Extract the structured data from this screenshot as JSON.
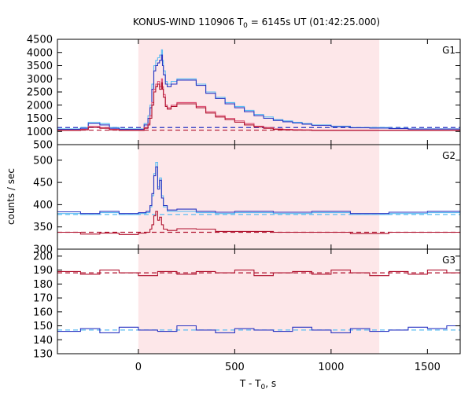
{
  "chart_data": {
    "type": "line",
    "title_prefix": "KONUS-WIND 110906 T",
    "title_sub": "0",
    "title_suffix": " = 6145s UT (01:42:25.000)",
    "xlabel_prefix": "T - T",
    "xlabel_sub": "0",
    "xlabel_suffix": ", s",
    "ylabel": "counts / sec",
    "xlim": [
      -420,
      1670
    ],
    "x_ticks": [
      0,
      500,
      1000,
      1500
    ],
    "shaded_interval": [
      0,
      1250
    ],
    "colors": {
      "shade": "#fde7e9",
      "light_blue": "#5bbcf2",
      "dark_blue": "#2a36c2",
      "red": "#b0122e",
      "pink": "#e0567a"
    },
    "panels": [
      {
        "label": "G1",
        "ylim": [
          500,
          4500
        ],
        "y_ticks": [
          500,
          1000,
          1500,
          2000,
          2500,
          3000,
          3500,
          4000,
          4500
        ],
        "background_levels": [
          {
            "name": "",
            "value": 1150,
            "color": "#2a36c2"
          },
          {
            "name": "",
            "value": 1050,
            "color": "#b0122e"
          }
        ],
        "series": [
          {
            "name": "",
            "color": "#5bbcf2",
            "x": [
              -420,
              -300,
              -260,
              -200,
              -150,
              -100,
              0,
              30,
              50,
              60,
              70,
              80,
              90,
              100,
              110,
              120,
              125,
              130,
              140,
              150,
              170,
              200,
              250,
              300,
              350,
              400,
              450,
              500,
              550,
              600,
              650,
              700,
              750,
              800,
              850,
              900,
              1000,
              1100,
              1200,
              1300,
              1400,
              1500,
              1670
            ],
            "y": [
              1100,
              1150,
              1350,
              1300,
              1150,
              1100,
              1100,
              1300,
              1600,
              2000,
              2800,
              3500,
              3700,
              3800,
              3900,
              4100,
              3700,
              3300,
              2900,
              2800,
              2900,
              3000,
              3000,
              2800,
              2500,
              2300,
              2100,
              1950,
              1800,
              1650,
              1550,
              1450,
              1400,
              1350,
              1300,
              1250,
              1200,
              1150,
              1150,
              1120,
              1100,
              1100,
              1100
            ]
          },
          {
            "name": "",
            "color": "#2a36c2",
            "x": [
              -420,
              -300,
              -260,
              -200,
              -150,
              -100,
              0,
              30,
              50,
              60,
              70,
              80,
              90,
              100,
              110,
              120,
              125,
              130,
              140,
              150,
              170,
              200,
              250,
              300,
              350,
              400,
              450,
              500,
              550,
              600,
              650,
              700,
              750,
              800,
              850,
              900,
              1000,
              1100,
              1200,
              1300,
              1400,
              1500,
              1670
            ],
            "y": [
              1080,
              1120,
              1300,
              1250,
              1120,
              1080,
              1080,
              1250,
              1500,
              1900,
              2600,
              3300,
              3500,
              3600,
              3700,
              3900,
              3500,
              3150,
              2800,
              2700,
              2800,
              2950,
              2950,
              2750,
              2450,
              2250,
              2050,
              1900,
              1750,
              1600,
              1500,
              1420,
              1370,
              1320,
              1280,
              1230,
              1180,
              1140,
              1130,
              1110,
              1090,
              1090,
              1090
            ]
          },
          {
            "name": "",
            "color": "#e0567a",
            "x": [
              -420,
              -300,
              -260,
              -200,
              -150,
              -100,
              0,
              30,
              50,
              60,
              70,
              80,
              90,
              100,
              110,
              120,
              125,
              130,
              140,
              150,
              170,
              200,
              250,
              300,
              350,
              400,
              450,
              500,
              550,
              600,
              650,
              700,
              750,
              800,
              850,
              900,
              1000,
              1100,
              1200,
              1300,
              1400,
              1500,
              1670
            ],
            "y": [
              1050,
              1080,
              1200,
              1150,
              1080,
              1050,
              1050,
              1150,
              1300,
              1600,
              2100,
              2600,
              2800,
              2900,
              2700,
              3000,
              2700,
              2400,
              2000,
              1900,
              2000,
              2100,
              2100,
              1950,
              1750,
              1600,
              1500,
              1400,
              1300,
              1200,
              1150,
              1100,
              1080,
              1070,
              1060,
              1050,
              1050,
              1050,
              1050,
              1050,
              1050,
              1050,
              1050
            ]
          },
          {
            "name": "",
            "color": "#b0122e",
            "x": [
              -420,
              -300,
              -260,
              -200,
              -150,
              -100,
              0,
              30,
              50,
              60,
              70,
              80,
              90,
              100,
              110,
              120,
              125,
              130,
              140,
              150,
              170,
              200,
              250,
              300,
              350,
              400,
              450,
              500,
              550,
              600,
              650,
              700,
              750,
              800,
              850,
              900,
              1000,
              1100,
              1200,
              1300,
              1400,
              1500,
              1670
            ],
            "y": [
              1040,
              1060,
              1150,
              1120,
              1060,
              1040,
              1040,
              1120,
              1250,
              1500,
              2000,
              2500,
              2700,
              2800,
              2600,
              2850,
              2600,
              2300,
              1950,
              1850,
              1950,
              2050,
              2050,
              1900,
              1700,
              1550,
              1450,
              1350,
              1250,
              1170,
              1120,
              1080,
              1060,
              1050,
              1050,
              1040,
              1040,
              1040,
              1040,
              1040,
              1040,
              1040,
              1040
            ]
          }
        ]
      },
      {
        "label": "G2",
        "ylim": [
          300,
          535
        ],
        "y_ticks": [
          300,
          350,
          400,
          450,
          500
        ],
        "background_levels": [
          {
            "name": "",
            "value": 378,
            "color": "#5bbcf2"
          },
          {
            "name": "",
            "value": 338,
            "color": "#b0122e"
          }
        ],
        "series": [
          {
            "name": "",
            "color": "#5bbcf2",
            "x": [
              -420,
              -300,
              -200,
              -100,
              0,
              40,
              60,
              70,
              80,
              90,
              100,
              110,
              120,
              130,
              150,
              200,
              300,
              400,
              500,
              700,
              900,
              1100,
              1300,
              1500,
              1670
            ],
            "y": [
              380,
              378,
              382,
              378,
              380,
              382,
              395,
              420,
              470,
              495,
              440,
              460,
              420,
              395,
              385,
              385,
              382,
              380,
              382,
              380,
              382,
              378,
              380,
              382,
              380
            ]
          },
          {
            "name": "",
            "color": "#2a36c2",
            "x": [
              -420,
              -300,
              -200,
              -100,
              0,
              40,
              60,
              70,
              80,
              90,
              100,
              110,
              120,
              130,
              150,
              200,
              300,
              400,
              500,
              700,
              900,
              1100,
              1300,
              1500,
              1670
            ],
            "y": [
              384,
              380,
              385,
              380,
              382,
              385,
              398,
              425,
              465,
              485,
              435,
              455,
              415,
              398,
              388,
              390,
              385,
              383,
              385,
              383,
              385,
              380,
              383,
              385,
              383
            ]
          },
          {
            "name": "",
            "color": "#b0122e",
            "x": [
              -420,
              -300,
              -200,
              -100,
              0,
              40,
              60,
              70,
              80,
              90,
              100,
              110,
              120,
              130,
              150,
              200,
              300,
              400,
              500,
              700,
              900,
              1100,
              1300,
              1500,
              1670
            ],
            "y": [
              338,
              334,
              336,
              333,
              336,
              338,
              345,
              355,
              375,
              385,
              365,
              372,
              355,
              345,
              342,
              346,
              345,
              340,
              340,
              338,
              338,
              335,
              338,
              338,
              337
            ]
          }
        ]
      },
      {
        "label": "G3",
        "ylim": [
          130,
          205
        ],
        "y_ticks": [
          130,
          140,
          150,
          160,
          170,
          180,
          190,
          200
        ],
        "background_levels": [
          {
            "name": "",
            "value": 147,
            "color": "#5bbcf2"
          },
          {
            "name": "",
            "value": 188,
            "color": "#b0122e"
          }
        ],
        "series": [
          {
            "name": "",
            "color": "#2a36c2",
            "x": [
              -420,
              -300,
              -200,
              -100,
              0,
              100,
              200,
              300,
              400,
              500,
              600,
              700,
              800,
              900,
              1000,
              1100,
              1200,
              1300,
              1400,
              1500,
              1600,
              1670
            ],
            "y": [
              146,
              148,
              145,
              149,
              147,
              146,
              150,
              147,
              145,
              148,
              147,
              146,
              149,
              147,
              145,
              148,
              146,
              147,
              149,
              148,
              150,
              148
            ]
          },
          {
            "name": "",
            "color": "#b0122e",
            "x": [
              -420,
              -300,
              -200,
              -100,
              0,
              100,
              200,
              300,
              400,
              500,
              600,
              700,
              800,
              900,
              1000,
              1100,
              1200,
              1300,
              1400,
              1500,
              1600,
              1670
            ],
            "y": [
              189,
              187,
              190,
              188,
              186,
              189,
              187,
              189,
              188,
              190,
              186,
              188,
              189,
              187,
              190,
              188,
              186,
              189,
              187,
              190,
              188,
              189
            ]
          }
        ]
      }
    ]
  }
}
